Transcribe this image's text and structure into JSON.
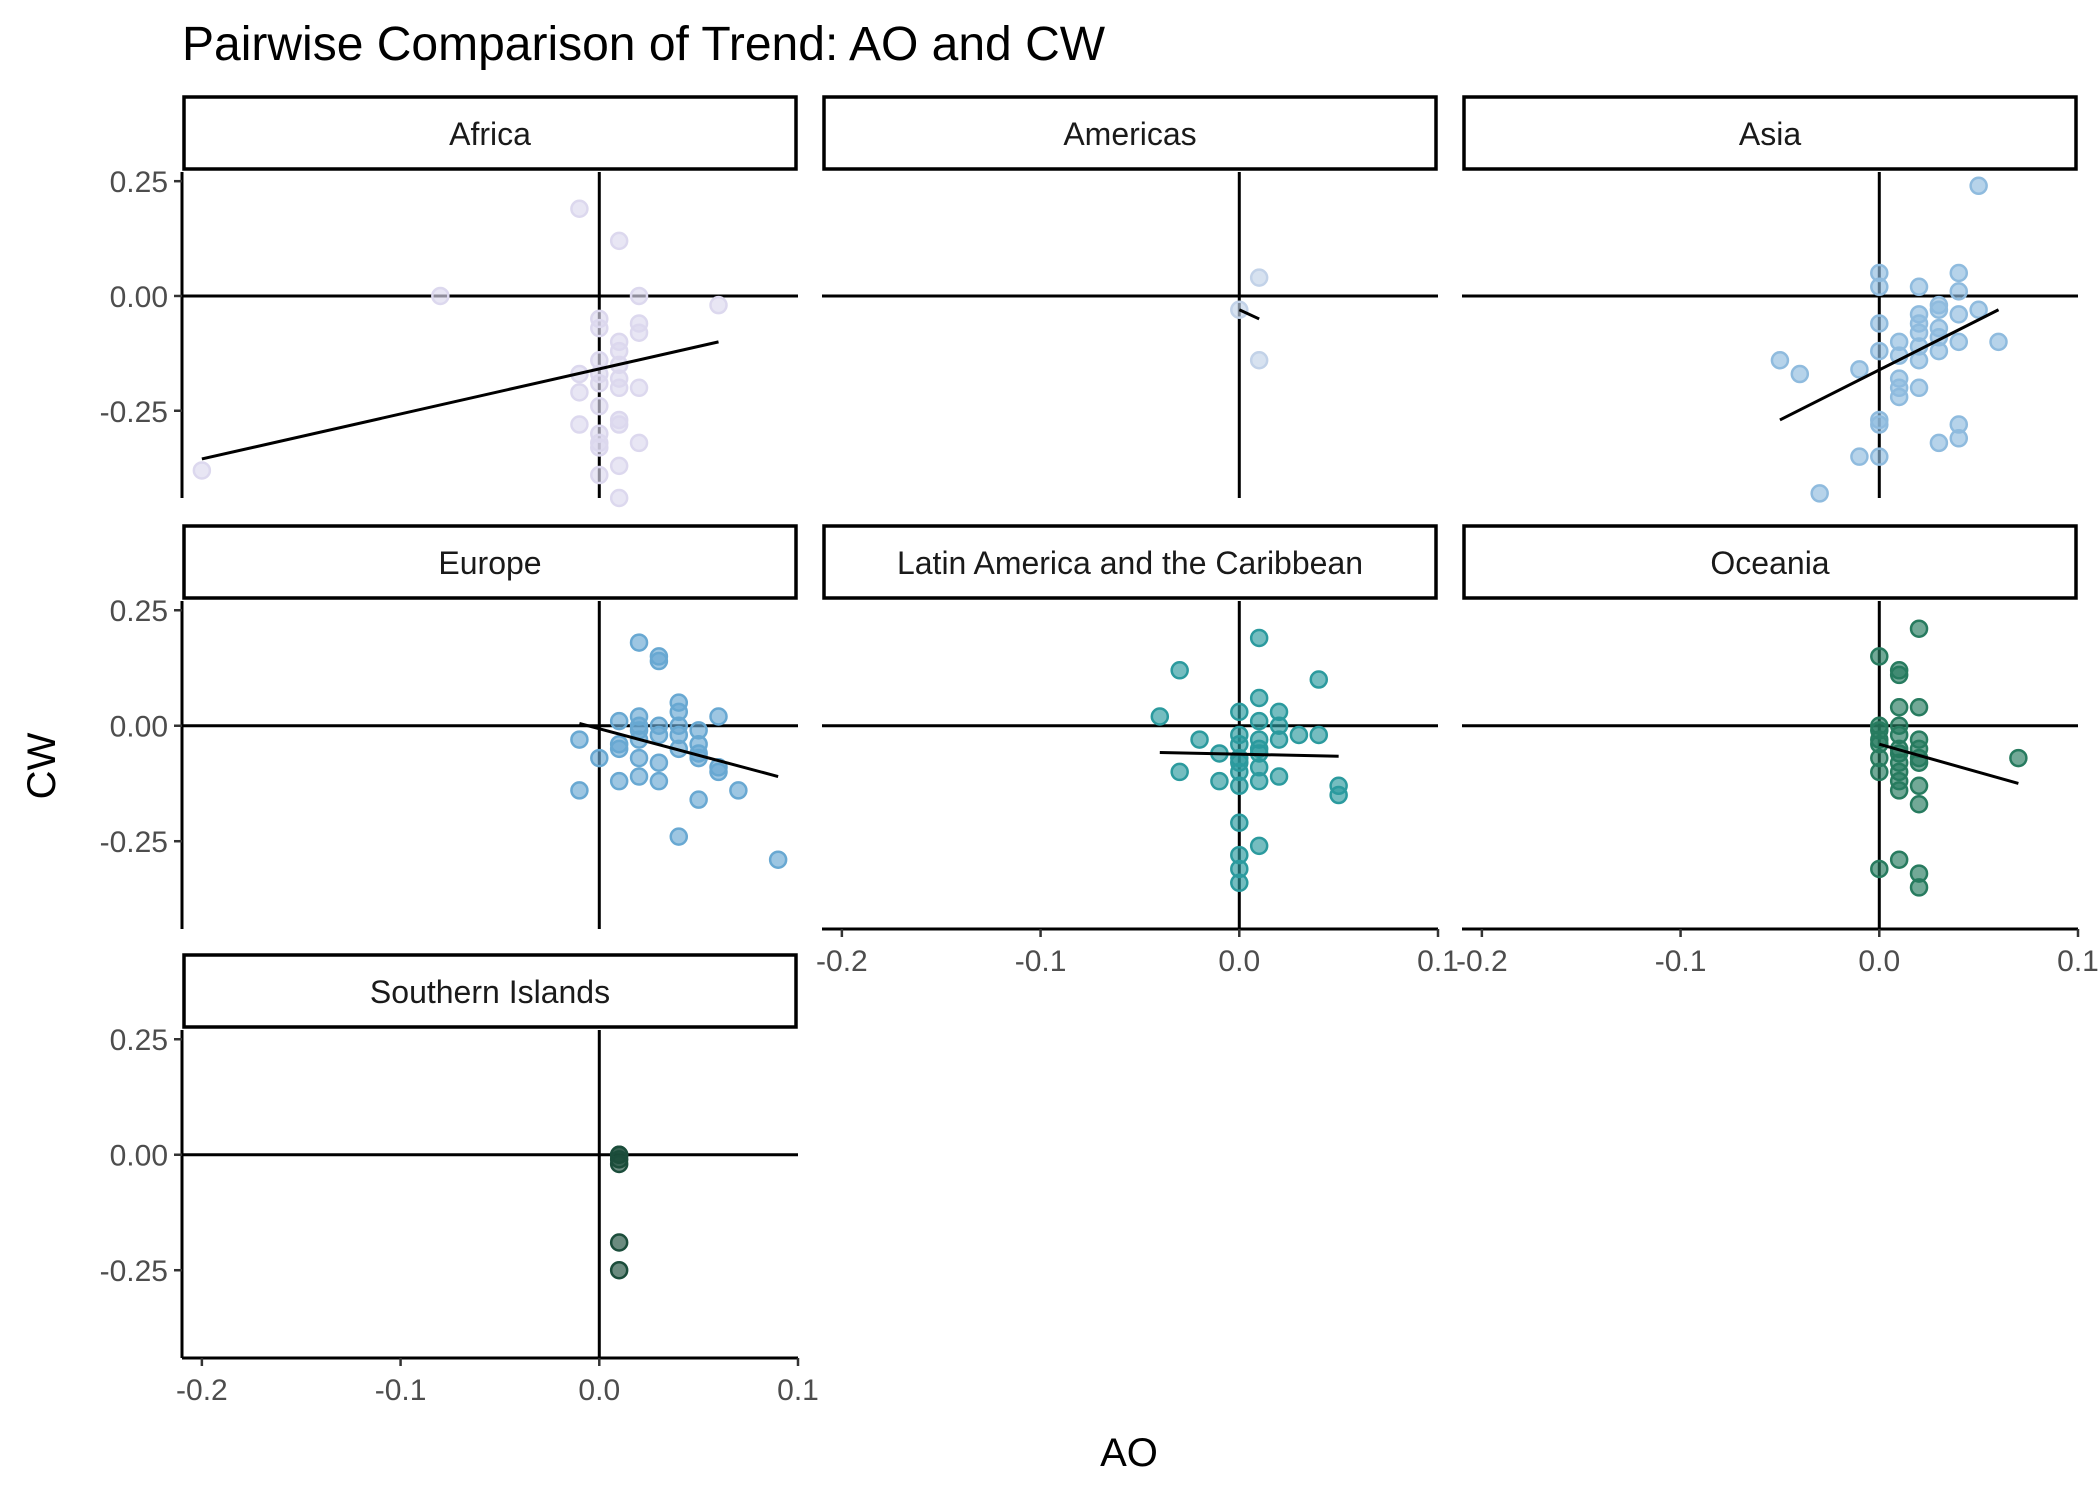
{
  "chart_data": {
    "type": "scatter",
    "title": "Pairwise Comparison of Trend: AO and CW",
    "xlabel": "AO",
    "ylabel": "CW",
    "xlim": [
      -0.21,
      0.1
    ],
    "ylim": [
      -0.44,
      0.27
    ],
    "x_ticks": [
      -0.2,
      -0.1,
      0.0,
      0.1
    ],
    "x_tick_labels": [
      "-0.2",
      "-0.1",
      "0.0",
      "0.1"
    ],
    "y_ticks": [
      0.25,
      0.0,
      -0.25
    ],
    "y_tick_labels": [
      "0.25",
      "0.00",
      "-0.25"
    ],
    "reference_lines": {
      "x": 0,
      "y": 0
    },
    "grid": false,
    "legend": "none",
    "facets": [
      {
        "name": "Africa",
        "color": "#dcd8ee",
        "points": [
          [
            -0.2,
            -0.38
          ],
          [
            -0.08,
            0.0
          ],
          [
            -0.01,
            0.19
          ],
          [
            0.01,
            0.12
          ],
          [
            0.02,
            0.0
          ],
          [
            0.06,
            -0.02
          ],
          [
            0.0,
            -0.05
          ],
          [
            0.0,
            -0.07
          ],
          [
            0.02,
            -0.06
          ],
          [
            0.02,
            -0.08
          ],
          [
            0.01,
            -0.1
          ],
          [
            0.01,
            -0.12
          ],
          [
            0.0,
            -0.14
          ],
          [
            0.01,
            -0.15
          ],
          [
            -0.01,
            -0.17
          ],
          [
            0.0,
            -0.17
          ],
          [
            0.01,
            -0.18
          ],
          [
            0.0,
            -0.19
          ],
          [
            0.01,
            -0.2
          ],
          [
            0.02,
            -0.2
          ],
          [
            -0.01,
            -0.21
          ],
          [
            0.0,
            -0.24
          ],
          [
            0.01,
            -0.27
          ],
          [
            0.01,
            -0.28
          ],
          [
            -0.01,
            -0.28
          ],
          [
            0.0,
            -0.3
          ],
          [
            0.0,
            -0.32
          ],
          [
            0.02,
            -0.32
          ],
          [
            0.0,
            -0.33
          ],
          [
            0.01,
            -0.37
          ],
          [
            0.0,
            -0.39
          ],
          [
            0.01,
            -0.44
          ]
        ],
        "trend": [
          [
            -0.2,
            -0.355
          ],
          [
            0.06,
            -0.1
          ]
        ]
      },
      {
        "name": "Americas",
        "color": "#c2d2e8",
        "points": [
          [
            0.01,
            0.04
          ],
          [
            0.0,
            -0.03
          ],
          [
            0.01,
            -0.14
          ]
        ],
        "trend": [
          [
            0.0,
            -0.03
          ],
          [
            0.01,
            -0.05
          ]
        ]
      },
      {
        "name": "Asia",
        "color": "#8fbbde",
        "points": [
          [
            0.05,
            0.24
          ],
          [
            0.0,
            0.05
          ],
          [
            0.04,
            0.05
          ],
          [
            0.0,
            0.02
          ],
          [
            0.02,
            0.02
          ],
          [
            0.04,
            0.01
          ],
          [
            0.03,
            -0.02
          ],
          [
            0.03,
            -0.03
          ],
          [
            0.05,
            -0.03
          ],
          [
            0.02,
            -0.04
          ],
          [
            0.04,
            -0.04
          ],
          [
            0.0,
            -0.06
          ],
          [
            0.02,
            -0.06
          ],
          [
            0.03,
            -0.07
          ],
          [
            0.02,
            -0.08
          ],
          [
            0.03,
            -0.09
          ],
          [
            0.01,
            -0.1
          ],
          [
            0.02,
            -0.11
          ],
          [
            0.04,
            -0.1
          ],
          [
            0.06,
            -0.1
          ],
          [
            0.0,
            -0.12
          ],
          [
            0.03,
            -0.12
          ],
          [
            0.01,
            -0.13
          ],
          [
            0.02,
            -0.14
          ],
          [
            -0.05,
            -0.14
          ],
          [
            -0.04,
            -0.17
          ],
          [
            -0.01,
            -0.16
          ],
          [
            0.01,
            -0.18
          ],
          [
            0.01,
            -0.2
          ],
          [
            0.02,
            -0.2
          ],
          [
            0.01,
            -0.22
          ],
          [
            0.0,
            -0.27
          ],
          [
            0.0,
            -0.28
          ],
          [
            0.04,
            -0.28
          ],
          [
            0.04,
            -0.31
          ],
          [
            0.03,
            -0.32
          ],
          [
            -0.01,
            -0.35
          ],
          [
            0.0,
            -0.35
          ],
          [
            -0.03,
            -0.43
          ]
        ],
        "trend": [
          [
            -0.05,
            -0.27
          ],
          [
            0.06,
            -0.03
          ]
        ]
      },
      {
        "name": "Europe",
        "color": "#68a8d2",
        "points": [
          [
            0.02,
            0.18
          ],
          [
            0.03,
            0.15
          ],
          [
            0.03,
            0.14
          ],
          [
            0.04,
            0.05
          ],
          [
            0.04,
            0.03
          ],
          [
            0.06,
            0.02
          ],
          [
            0.02,
            0.02
          ],
          [
            0.01,
            0.01
          ],
          [
            0.02,
            0.0
          ],
          [
            0.03,
            0.0
          ],
          [
            0.04,
            0.0
          ],
          [
            0.02,
            -0.01
          ],
          [
            0.05,
            -0.01
          ],
          [
            0.03,
            -0.02
          ],
          [
            0.04,
            -0.02
          ],
          [
            -0.01,
            -0.03
          ],
          [
            0.02,
            -0.03
          ],
          [
            0.05,
            -0.04
          ],
          [
            0.01,
            -0.04
          ],
          [
            0.01,
            -0.05
          ],
          [
            0.04,
            -0.05
          ],
          [
            0.05,
            -0.06
          ],
          [
            0.02,
            -0.07
          ],
          [
            0.05,
            -0.07
          ],
          [
            0.0,
            -0.07
          ],
          [
            0.03,
            -0.08
          ],
          [
            0.06,
            -0.09
          ],
          [
            0.06,
            -0.1
          ],
          [
            0.02,
            -0.11
          ],
          [
            0.01,
            -0.12
          ],
          [
            0.03,
            -0.12
          ],
          [
            0.07,
            -0.14
          ],
          [
            -0.01,
            -0.14
          ],
          [
            0.05,
            -0.16
          ],
          [
            0.04,
            -0.24
          ],
          [
            0.09,
            -0.29
          ]
        ],
        "trend": [
          [
            -0.01,
            0.005
          ],
          [
            0.09,
            -0.11
          ]
        ]
      },
      {
        "name": "Latin America and the Caribbean",
        "color": "#2b9a9e",
        "points": [
          [
            0.01,
            0.19
          ],
          [
            -0.03,
            0.12
          ],
          [
            0.04,
            0.1
          ],
          [
            0.01,
            0.06
          ],
          [
            0.0,
            0.03
          ],
          [
            0.02,
            0.03
          ],
          [
            -0.04,
            0.02
          ],
          [
            0.01,
            0.01
          ],
          [
            0.02,
            0.0
          ],
          [
            -0.02,
            -0.03
          ],
          [
            0.0,
            -0.02
          ],
          [
            0.03,
            -0.02
          ],
          [
            0.04,
            -0.02
          ],
          [
            0.01,
            -0.03
          ],
          [
            0.02,
            -0.03
          ],
          [
            0.0,
            -0.04
          ],
          [
            0.01,
            -0.05
          ],
          [
            -0.01,
            -0.06
          ],
          [
            0.01,
            -0.06
          ],
          [
            0.0,
            -0.07
          ],
          [
            0.0,
            -0.08
          ],
          [
            0.01,
            -0.09
          ],
          [
            0.0,
            -0.1
          ],
          [
            -0.03,
            -0.1
          ],
          [
            0.02,
            -0.11
          ],
          [
            -0.01,
            -0.12
          ],
          [
            0.01,
            -0.12
          ],
          [
            0.05,
            -0.13
          ],
          [
            0.0,
            -0.13
          ],
          [
            0.05,
            -0.15
          ],
          [
            0.0,
            -0.21
          ],
          [
            0.01,
            -0.26
          ],
          [
            0.0,
            -0.28
          ],
          [
            0.0,
            -0.31
          ],
          [
            0.0,
            -0.34
          ]
        ],
        "trend": [
          [
            -0.04,
            -0.058
          ],
          [
            0.05,
            -0.066
          ]
        ]
      },
      {
        "name": "Oceania",
        "color": "#277b5f",
        "points": [
          [
            0.02,
            0.21
          ],
          [
            0.0,
            0.15
          ],
          [
            0.01,
            0.12
          ],
          [
            0.01,
            0.11
          ],
          [
            0.01,
            0.04
          ],
          [
            0.02,
            0.04
          ],
          [
            0.0,
            0.0
          ],
          [
            0.01,
            0.0
          ],
          [
            0.0,
            -0.01
          ],
          [
            0.01,
            -0.02
          ],
          [
            0.0,
            -0.03
          ],
          [
            0.02,
            -0.03
          ],
          [
            0.0,
            -0.04
          ],
          [
            0.01,
            -0.05
          ],
          [
            0.02,
            -0.05
          ],
          [
            0.01,
            -0.06
          ],
          [
            0.0,
            -0.07
          ],
          [
            0.02,
            -0.07
          ],
          [
            0.07,
            -0.07
          ],
          [
            0.01,
            -0.08
          ],
          [
            0.02,
            -0.08
          ],
          [
            0.0,
            -0.1
          ],
          [
            0.01,
            -0.1
          ],
          [
            0.01,
            -0.12
          ],
          [
            0.02,
            -0.13
          ],
          [
            0.01,
            -0.14
          ],
          [
            0.02,
            -0.17
          ],
          [
            0.0,
            -0.31
          ],
          [
            0.01,
            -0.29
          ],
          [
            0.02,
            -0.32
          ],
          [
            0.02,
            -0.35
          ]
        ],
        "trend": [
          [
            0.0,
            -0.04
          ],
          [
            0.07,
            -0.125
          ]
        ]
      },
      {
        "name": "Southern Islands",
        "color": "#1b4d3b",
        "points": [
          [
            0.01,
            0.0
          ],
          [
            0.01,
            0.0
          ],
          [
            0.01,
            -0.01
          ],
          [
            0.01,
            -0.02
          ],
          [
            0.01,
            -0.19
          ],
          [
            0.01,
            -0.25
          ]
        ],
        "trend": []
      }
    ]
  }
}
